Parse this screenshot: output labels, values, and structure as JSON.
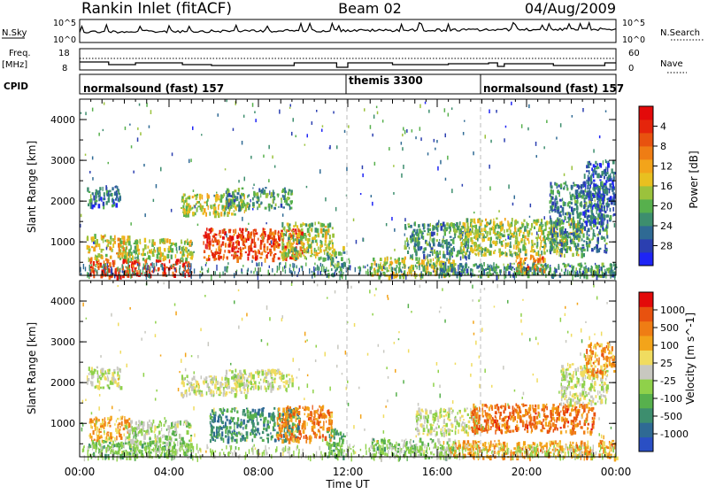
{
  "header": {
    "station": "Rankin Inlet (fitACF)",
    "beam": "Beam 02",
    "date": "04/Aug/2009"
  },
  "aux_panels": {
    "nsky_label": "N.Sky",
    "nsky_ticks": [
      "10^5",
      "10^0"
    ],
    "nsearch_label": "N.Search",
    "nsearch_ticks": [
      "10^5",
      "10^0"
    ],
    "freq_label_1": "Freq.",
    "freq_label_2": "[MHz]",
    "freq_ticks": [
      "18",
      "8"
    ],
    "nave_label": "Nave",
    "nave_ticks": [
      "60",
      "0"
    ],
    "cpid_label": "CPID",
    "cpid_segments": [
      {
        "label": "normalsound (fast) 157",
        "start_hour": 0
      },
      {
        "label": "themis 3300",
        "start_hour": 12
      },
      {
        "label": "normalsound (fast) 157",
        "start_hour": 18
      }
    ]
  },
  "chart_data": [
    {
      "type": "heatmap",
      "title": "",
      "xlabel": "",
      "ylabel": "Slant Range [km]",
      "xlim": [
        0,
        24
      ],
      "ylim": [
        180,
        4500
      ],
      "y_ticks": [
        1000,
        2000,
        3000,
        4000
      ],
      "colorbar": {
        "label": "Power [dB]",
        "ticks": [
          "4",
          "8",
          "12",
          "16",
          "20",
          "24",
          "28"
        ],
        "colors": [
          "#1e24f5",
          "#2b3fb0",
          "#2f6a94",
          "#3d8e6e",
          "#57b04d",
          "#9bc23c",
          "#e8c020",
          "#f3a41a",
          "#ef7d14",
          "#e8520f",
          "#e5250c",
          "#e30a0a"
        ]
      },
      "echo_regions": [
        {
          "t0": 0.4,
          "t1": 5.0,
          "r0": 180,
          "r1": 600,
          "level": 0.88
        },
        {
          "t0": 0.3,
          "t1": 2.2,
          "r0": 600,
          "r1": 1200,
          "level": 0.55
        },
        {
          "t0": 0.3,
          "t1": 1.8,
          "r0": 1900,
          "r1": 2400,
          "level": 0.18
        },
        {
          "t0": 2.0,
          "t1": 5.0,
          "r0": 600,
          "r1": 1100,
          "level": 0.45
        },
        {
          "t0": 4.5,
          "t1": 7.5,
          "r0": 1700,
          "r1": 2200,
          "level": 0.5
        },
        {
          "t0": 5.5,
          "t1": 10.0,
          "r0": 600,
          "r1": 1350,
          "level": 0.85
        },
        {
          "t0": 9.0,
          "t1": 11.3,
          "r0": 600,
          "r1": 1500,
          "level": 0.45
        },
        {
          "t0": 6.5,
          "t1": 9.5,
          "r0": 1850,
          "r1": 2350,
          "level": 0.3
        },
        {
          "t0": 11.0,
          "t1": 11.8,
          "r0": 180,
          "r1": 900,
          "level": 0.35
        },
        {
          "t0": 13.0,
          "t1": 16.8,
          "r0": 180,
          "r1": 650,
          "level": 0.5
        },
        {
          "t0": 14.5,
          "t1": 17.5,
          "r0": 650,
          "r1": 1500,
          "level": 0.3
        },
        {
          "t0": 16.0,
          "t1": 24.0,
          "r0": 180,
          "r1": 500,
          "level": 0.3
        },
        {
          "t0": 17.0,
          "t1": 22.5,
          "r0": 700,
          "r1": 1600,
          "level": 0.45
        },
        {
          "t0": 21.0,
          "t1": 23.6,
          "r0": 800,
          "r1": 2500,
          "level": 0.25
        },
        {
          "t0": 22.5,
          "t1": 23.9,
          "r0": 1500,
          "r1": 3000,
          "level": 0.15
        },
        {
          "t0": 19.5,
          "t1": 20.8,
          "r0": 300,
          "r1": 700,
          "level": 0.7
        }
      ]
    },
    {
      "type": "heatmap",
      "title": "",
      "xlabel": "Time UT",
      "ylabel": "Slant Range [km]",
      "xlim": [
        0,
        24
      ],
      "ylim": [
        180,
        4500
      ],
      "y_ticks": [
        1000,
        2000,
        3000,
        4000
      ],
      "x_ticks": [
        "00:00",
        "04:00",
        "08:00",
        "12:00",
        "16:00",
        "20:00",
        "00:00"
      ],
      "colorbar": {
        "label": "Velocity [m s^-1]",
        "ticks": [
          "1000",
          "500",
          "100",
          "25",
          "-25",
          "-100",
          "-500",
          "-1000"
        ],
        "colors": [
          "#2a4fc4",
          "#2f6a94",
          "#3d8e6e",
          "#57b04d",
          "#8fd14a",
          "#c8c8c0",
          "#f0dc60",
          "#f3a41a",
          "#ef7d14",
          "#e8520f",
          "#e30a0a"
        ]
      },
      "echo_regions": [
        {
          "t0": 0.4,
          "t1": 2.2,
          "r0": 600,
          "r1": 1200,
          "level": 0.7
        },
        {
          "t0": 0.3,
          "t1": 5.0,
          "r0": 180,
          "r1": 600,
          "level": 0.35
        },
        {
          "t0": 0.3,
          "t1": 1.8,
          "r0": 1900,
          "r1": 2400,
          "level": 0.5
        },
        {
          "t0": 2.0,
          "t1": 5.0,
          "r0": 500,
          "r1": 1100,
          "level": 0.42
        },
        {
          "t0": 4.5,
          "t1": 7.5,
          "r0": 1700,
          "r1": 2200,
          "level": 0.5
        },
        {
          "t0": 5.8,
          "t1": 9.8,
          "r0": 600,
          "r1": 1400,
          "level": 0.2
        },
        {
          "t0": 8.8,
          "t1": 11.3,
          "r0": 600,
          "r1": 1450,
          "level": 0.78
        },
        {
          "t0": 6.5,
          "t1": 9.5,
          "r0": 1850,
          "r1": 2350,
          "level": 0.5
        },
        {
          "t0": 11.0,
          "t1": 11.8,
          "r0": 180,
          "r1": 900,
          "level": 0.3
        },
        {
          "t0": 13.0,
          "t1": 16.8,
          "r0": 180,
          "r1": 650,
          "level": 0.38
        },
        {
          "t0": 15.0,
          "t1": 17.8,
          "r0": 750,
          "r1": 1400,
          "level": 0.5
        },
        {
          "t0": 16.5,
          "t1": 24.0,
          "r0": 180,
          "r1": 600,
          "level": 0.72
        },
        {
          "t0": 17.5,
          "t1": 23.0,
          "r0": 800,
          "r1": 1500,
          "level": 0.82
        },
        {
          "t0": 21.5,
          "t1": 23.6,
          "r0": 1500,
          "r1": 2500,
          "level": 0.5
        },
        {
          "t0": 22.6,
          "t1": 23.9,
          "r0": 2200,
          "r1": 3000,
          "level": 0.75
        }
      ]
    }
  ]
}
